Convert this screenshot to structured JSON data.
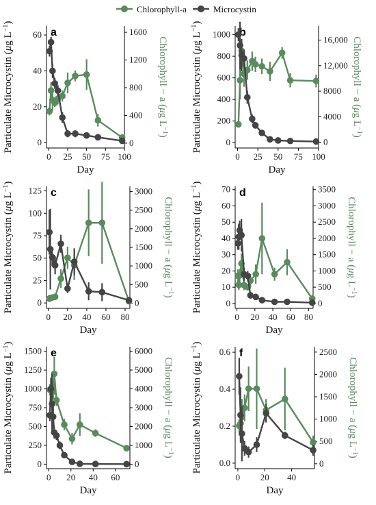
{
  "legend": {
    "chl_label": "Chlorophyll-a",
    "mc_label": "Microcystin",
    "chl_color": "#5a8a5e",
    "mc_color": "#444444"
  },
  "labels": {
    "x": "Day",
    "y_left_main": "Particulate Microcystin (",
    "y_left_mu": "μ",
    "y_left_unit": "g L",
    "y_left_sup": "−1",
    "y_left_close": ")",
    "y_right_main": "Chlorophyll − a (",
    "y_right_mu": "μ",
    "y_right_unit": "g L",
    "y_right_sup": "−1",
    "y_right_close": ")"
  },
  "chart_data": [
    {
      "panel": "a",
      "type": "line",
      "xticks": [
        0,
        25,
        50,
        75,
        100
      ],
      "xlim": [
        -3,
        100
      ],
      "left_ticks": [
        0,
        20,
        40,
        60
      ],
      "left_lim": [
        -3,
        65
      ],
      "right_ticks": [
        0,
        400,
        800,
        1200,
        1600
      ],
      "right_tick_labels": [
        "0",
        "400",
        "800",
        "1200",
        "1600"
      ],
      "right_lim": [
        -70,
        1690
      ],
      "microcystin": {
        "x": [
          1,
          3,
          5,
          8,
          12,
          18,
          25,
          35,
          50,
          65,
          97
        ],
        "y": [
          51,
          56,
          40,
          33,
          29,
          14,
          5,
          5,
          4,
          3,
          1
        ],
        "err": [
          3,
          3,
          4,
          3,
          3,
          3,
          2,
          2,
          1,
          1,
          0.5
        ]
      },
      "chlorophyll": {
        "x": [
          1,
          3,
          5,
          8,
          12,
          18,
          25,
          35,
          50,
          65,
          97
        ],
        "y": [
          460,
          760,
          620,
          580,
          640,
          680,
          870,
          970,
          990,
          330,
          80
        ],
        "err": [
          60,
          120,
          150,
          60,
          80,
          80,
          150,
          80,
          220,
          90,
          50
        ]
      }
    },
    {
      "panel": "b",
      "type": "line",
      "xticks": [
        0,
        25,
        50,
        75,
        100
      ],
      "xlim": [
        -3,
        100
      ],
      "left_ticks": [
        0,
        200,
        400,
        600,
        800,
        1000
      ],
      "left_lim": [
        -50,
        1080
      ],
      "right_ticks": [
        0,
        4000,
        8000,
        12000,
        16000
      ],
      "right_tick_labels": [
        "0",
        "4000",
        "8000",
        "12,000",
        "16,000"
      ],
      "right_lim": [
        -900,
        18200
      ],
      "microcystin": {
        "x": [
          1,
          3,
          5,
          8,
          12,
          18,
          22,
          30,
          40,
          50,
          65,
          97
        ],
        "y": [
          1000,
          900,
          810,
          780,
          420,
          220,
          160,
          90,
          30,
          20,
          15,
          10
        ],
        "err": [
          60,
          220,
          150,
          80,
          60,
          40,
          30,
          20,
          10,
          8,
          6,
          4
        ]
      },
      "chlorophyll": {
        "x": [
          1,
          3,
          5,
          8,
          12,
          18,
          22,
          30,
          40,
          55,
          65,
          97
        ],
        "y": [
          2800,
          9700,
          14300,
          10700,
          11300,
          12700,
          12200,
          11900,
          11100,
          14000,
          9700,
          9600
        ],
        "err": [
          300,
          3000,
          1200,
          2000,
          1500,
          1500,
          1200,
          1200,
          1500,
          900,
          1100,
          1000
        ]
      }
    },
    {
      "panel": "c",
      "type": "line",
      "xticks": [
        0,
        20,
        40,
        60,
        80
      ],
      "xlim": [
        -2,
        85
      ],
      "left_ticks": [
        0,
        25,
        50,
        75,
        100,
        125
      ],
      "left_lim": [
        -6,
        130
      ],
      "right_ticks": [
        0,
        500,
        1000,
        1500,
        2000,
        2500,
        3000
      ],
      "right_tick_labels": [
        "0",
        "500",
        "1000",
        "1500",
        "2000",
        "2500",
        "3000"
      ],
      "right_lim": [
        -140,
        3140
      ],
      "microcystin": {
        "x": [
          1,
          2,
          4,
          7,
          13,
          20,
          27,
          42,
          56,
          84
        ],
        "y": [
          79,
          60,
          51,
          42,
          66,
          16,
          46,
          13,
          12,
          3
        ],
        "err": [
          25,
          45,
          10,
          10,
          10,
          5,
          15,
          10,
          10,
          3
        ]
      },
      "chlorophyll": {
        "x": [
          1,
          2,
          4,
          7,
          13,
          20,
          27,
          42,
          56,
          84
        ],
        "y": [
          120,
          140,
          150,
          170,
          660,
          1220,
          1020,
          2160,
          2160,
          50
        ],
        "err": [
          40,
          40,
          40,
          50,
          250,
          300,
          400,
          900,
          1100,
          40
        ]
      }
    },
    {
      "panel": "d",
      "type": "line",
      "xticks": [
        0,
        20,
        40,
        60,
        80
      ],
      "xlim": [
        -2,
        85
      ],
      "left_ticks": [
        0,
        10,
        20,
        30,
        40,
        50,
        60,
        70
      ],
      "left_lim": [
        -3,
        72
      ],
      "right_ticks": [
        0,
        500,
        1000,
        1500,
        2000,
        2500,
        3000,
        3500
      ],
      "right_tick_labels": [
        "0",
        "500",
        "1000",
        "1500",
        "2000",
        "2500",
        "3000",
        "3500"
      ],
      "right_lim": [
        -150,
        3600
      ],
      "microcystin": {
        "x": [
          1,
          2,
          3,
          5,
          8,
          12,
          15,
          21,
          28,
          42,
          56,
          84
        ],
        "y": [
          37,
          41,
          45,
          42,
          18,
          17,
          5,
          4,
          2,
          1,
          1,
          0.5
        ],
        "err": [
          4,
          8,
          6,
          10,
          4,
          3,
          2,
          2,
          1,
          0.5,
          0.5,
          0.3
        ]
      },
      "chlorophyll": {
        "x": [
          1,
          2,
          3,
          5,
          8,
          12,
          15,
          21,
          28,
          42,
          56,
          84
        ],
        "y": [
          850,
          570,
          860,
          1230,
          560,
          500,
          700,
          900,
          2000,
          900,
          1270,
          150
        ],
        "err": [
          200,
          150,
          200,
          300,
          150,
          100,
          200,
          300,
          1100,
          200,
          400,
          100
        ]
      }
    },
    {
      "panel": "e",
      "type": "line",
      "xticks": [
        0,
        20,
        40,
        60
      ],
      "xlim": [
        -2,
        73
      ],
      "left_ticks": [
        0,
        250,
        500,
        750,
        1000,
        1250,
        1500
      ],
      "left_lim": [
        -60,
        1560
      ],
      "right_ticks": [
        0,
        1000,
        2000,
        3000,
        4000,
        5000,
        6000
      ],
      "right_tick_labels": [
        "0",
        "1000",
        "2000",
        "3000",
        "4000",
        "5000",
        "6000"
      ],
      "right_lim": [
        -240,
        6240
      ],
      "microcystin": {
        "x": [
          1,
          2,
          3,
          4,
          5,
          7,
          10,
          14,
          21,
          28,
          42,
          70
        ],
        "y": [
          650,
          1000,
          800,
          630,
          420,
          380,
          250,
          120,
          30,
          5,
          2,
          1
        ],
        "err": [
          80,
          150,
          400,
          150,
          80,
          60,
          50,
          30,
          10,
          5,
          2,
          1
        ]
      },
      "chlorophyll": {
        "x": [
          1,
          2,
          3,
          4,
          5,
          7,
          14,
          21,
          28,
          42,
          70
        ],
        "y": [
          3950,
          3950,
          4100,
          3850,
          4800,
          3400,
          2100,
          1350,
          2100,
          1650,
          850
        ],
        "err": [
          300,
          500,
          500,
          400,
          900,
          300,
          300,
          300,
          600,
          200,
          150
        ]
      }
    },
    {
      "panel": "f",
      "type": "line",
      "xticks": [
        0,
        20,
        40
      ],
      "xlim": [
        -2,
        57
      ],
      "left_ticks": [
        0.0,
        0.2,
        0.4,
        0.6
      ],
      "left_tick_labels": [
        "0.0",
        "0.2",
        "0.4",
        "0.6"
      ],
      "left_lim": [
        -0.03,
        0.63
      ],
      "right_ticks": [
        0,
        500,
        1000,
        1500,
        2000,
        2500
      ],
      "right_tick_labels": [
        "0",
        "500",
        "1000",
        "1500",
        "2000",
        "2500"
      ],
      "right_lim": [
        -110,
        2620
      ],
      "microcystin": {
        "x": [
          1,
          2,
          3,
          5,
          8,
          14,
          21,
          35,
          56
        ],
        "y": [
          0.47,
          0.26,
          0.16,
          0.08,
          0.06,
          0.1,
          0.27,
          0.15,
          0.07
        ],
        "err": [
          0.1,
          0.15,
          0.15,
          0.04,
          0.03,
          0.04,
          0.05,
          0.02,
          0.03
        ]
      },
      "chlorophyll": {
        "x": [
          1,
          2,
          3,
          5,
          8,
          14,
          21,
          35,
          56
        ],
        "y": [
          850,
          900,
          1050,
          1250,
          1680,
          1680,
          1200,
          1450,
          480
        ],
        "err": [
          150,
          200,
          400,
          300,
          500,
          900,
          250,
          700,
          150
        ]
      }
    }
  ]
}
